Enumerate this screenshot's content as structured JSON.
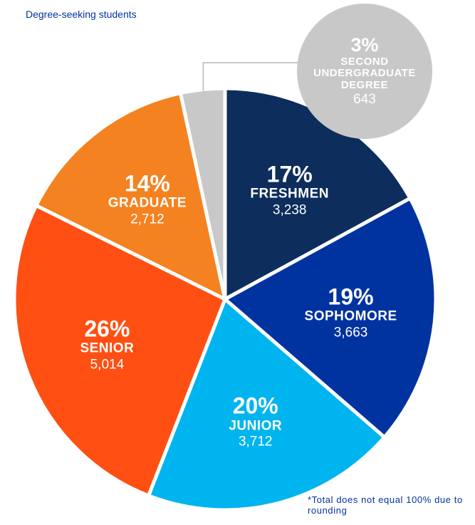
{
  "chart_data": {
    "type": "pie",
    "subtitle": "Degree-seeking students",
    "categories": [
      "FRESHMEN",
      "SOPHOMORE",
      "JUNIOR",
      "SENIOR",
      "GRADUATE",
      "SECOND UNDERGRADUATE DEGREE"
    ],
    "values": [
      3238,
      3663,
      3712,
      5014,
      2712,
      643
    ],
    "value_labels": [
      "3,238",
      "3,663",
      "3,712",
      "5,014",
      "2,712",
      "643"
    ],
    "percent_labels": [
      "17%",
      "19%",
      "20%",
      "26%",
      "14%",
      "3%"
    ],
    "colors": [
      "#0d2d5c",
      "#0033a0",
      "#00b5ef",
      "#ff4f12",
      "#f58220",
      "#c8c8c8"
    ],
    "note": "*Total does not equal 100% due to rounding"
  }
}
